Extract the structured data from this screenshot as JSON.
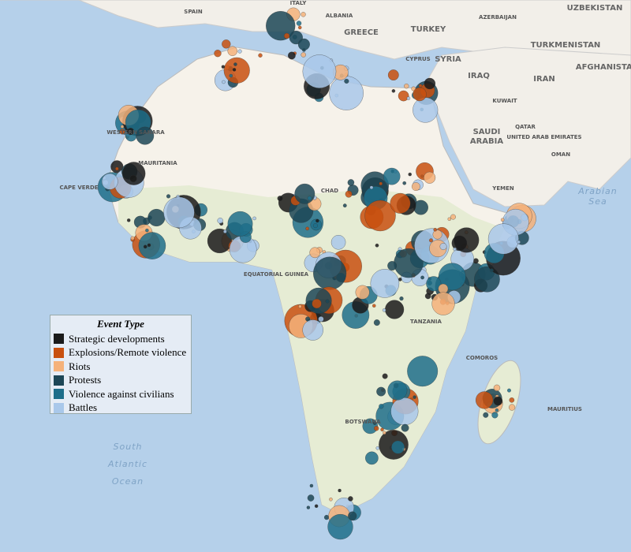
{
  "legend": {
    "title": "Event Type",
    "items": [
      {
        "label": "Strategic developments",
        "color": "#1a1a1a"
      },
      {
        "label": "Explosions/Remote violence",
        "color": "#c8500f"
      },
      {
        "label": "Riots",
        "color": "#f5b27a"
      },
      {
        "label": "Protests",
        "color": "#1c4656"
      },
      {
        "label": "Violence against civilians",
        "color": "#1e6e8a"
      },
      {
        "label": "Battles",
        "color": "#a9c8ea"
      }
    ]
  },
  "places": {
    "spain": "SPAIN",
    "italy": "ITALY",
    "albania": "ALBANIA",
    "greece": "GREECE",
    "turkey": "TURKEY",
    "azerbaijan": "AZERBAIJAN",
    "uzbekistan": "UZBEKISTAN",
    "turkmenistan": "TURKMENISTAN",
    "cyprus": "CYPRUS",
    "syria": "SYRIA",
    "iraq": "IRAQ",
    "iran": "IRAN",
    "afghanistan": "AFGHANISTAN",
    "kuwait": "KUWAIT",
    "saudi": "SAUDI",
    "arabia": "ARABIA",
    "qatar": "QATAR",
    "uae": "UNITED ARAB EMIRATES",
    "oman": "OMAN",
    "yemen": "YEMEN",
    "western_sahara": "WESTERN SAHARA",
    "mauritania": "MAURITANIA",
    "cape_verde": "CAPE VERDE",
    "chad": "CHAD",
    "tanzania": "TANZANIA",
    "comoros": "COMOROS",
    "mauritius": "MAURITIUS",
    "botswana": "BOTSWANA",
    "equatorial_guinea": "EQUATORIAL GUINEA"
  },
  "seas": {
    "arabian": "Arabian",
    "sea": "Sea",
    "south": "South",
    "atlantic": "Atlantic",
    "ocean": "Ocean"
  }
}
